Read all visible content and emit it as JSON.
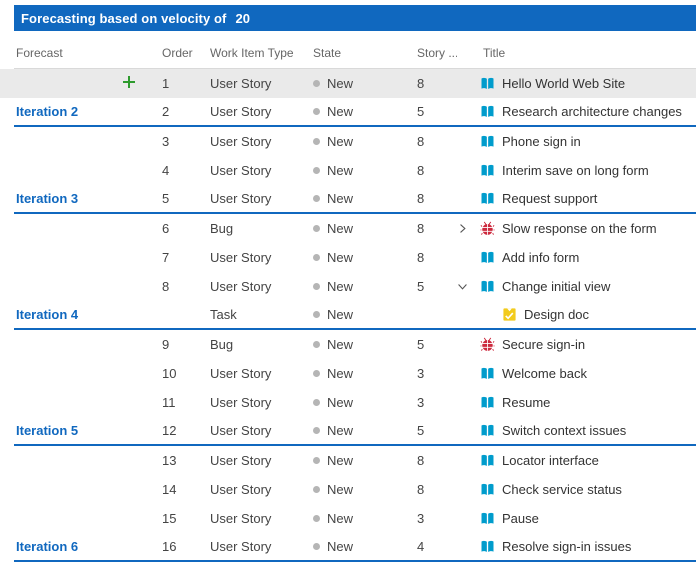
{
  "header": {
    "label": "Forecasting based on velocity of",
    "velocity": "20"
  },
  "columns": {
    "forecast": "Forecast",
    "order": "Order",
    "type": "Work Item Type",
    "state": "State",
    "points": "Story ...",
    "title": "Title"
  },
  "colors": {
    "accent": "#1068BF",
    "line": "#1068BF",
    "selected_row": "#eaeaea",
    "user_story_icon": "#009CCC",
    "bug_icon": "#CC293D",
    "task_icon": "#F2CB1D",
    "plus_icon": "#2E9B2E",
    "state_dot": "#b5b5b5"
  },
  "rows": [
    {
      "forecast": "",
      "plus": true,
      "order": "1",
      "type": "User Story",
      "state": "New",
      "points": "8",
      "icon": "user-story",
      "title": "Hello World Web Site",
      "selected": true
    },
    {
      "forecast": "Iteration 2",
      "order": "2",
      "type": "User Story",
      "state": "New",
      "points": "5",
      "icon": "user-story",
      "title": "Research architecture changes",
      "line": true
    },
    {
      "forecast": "",
      "order": "3",
      "type": "User Story",
      "state": "New",
      "points": "8",
      "icon": "user-story",
      "title": "Phone sign in"
    },
    {
      "forecast": "",
      "order": "4",
      "type": "User Story",
      "state": "New",
      "points": "8",
      "icon": "user-story",
      "title": "Interim save on long form"
    },
    {
      "forecast": "Iteration 3",
      "order": "5",
      "type": "User Story",
      "state": "New",
      "points": "8",
      "icon": "user-story",
      "title": "Request support",
      "line": true
    },
    {
      "forecast": "",
      "order": "6",
      "type": "Bug",
      "state": "New",
      "points": "8",
      "icon": "bug",
      "title": "Slow response on the form",
      "chevron": "right"
    },
    {
      "forecast": "",
      "order": "7",
      "type": "User Story",
      "state": "New",
      "points": "8",
      "icon": "user-story",
      "title": "Add info form"
    },
    {
      "forecast": "",
      "order": "8",
      "type": "User Story",
      "state": "New",
      "points": "5",
      "icon": "user-story",
      "title": "Change initial view",
      "chevron": "down"
    },
    {
      "forecast": "Iteration 4",
      "order": "",
      "type": "Task",
      "state": "New",
      "points": "",
      "icon": "task",
      "title": "Design doc",
      "child": true,
      "line": true
    },
    {
      "forecast": "",
      "order": "9",
      "type": "Bug",
      "state": "New",
      "points": "5",
      "icon": "bug",
      "title": "Secure sign-in"
    },
    {
      "forecast": "",
      "order": "10",
      "type": "User Story",
      "state": "New",
      "points": "3",
      "icon": "user-story",
      "title": "Welcome back"
    },
    {
      "forecast": "",
      "order": "11",
      "type": "User Story",
      "state": "New",
      "points": "3",
      "icon": "user-story",
      "title": "Resume"
    },
    {
      "forecast": "Iteration 5",
      "order": "12",
      "type": "User Story",
      "state": "New",
      "points": "5",
      "icon": "user-story",
      "title": "Switch context issues",
      "line": true
    },
    {
      "forecast": "",
      "order": "13",
      "type": "User Story",
      "state": "New",
      "points": "8",
      "icon": "user-story",
      "title": "Locator interface"
    },
    {
      "forecast": "",
      "order": "14",
      "type": "User Story",
      "state": "New",
      "points": "8",
      "icon": "user-story",
      "title": "Check service status"
    },
    {
      "forecast": "",
      "order": "15",
      "type": "User Story",
      "state": "New",
      "points": "3",
      "icon": "user-story",
      "title": "Pause"
    },
    {
      "forecast": "Iteration 6",
      "order": "16",
      "type": "User Story",
      "state": "New",
      "points": "4",
      "icon": "user-story",
      "title": "Resolve sign-in issues",
      "line": true
    }
  ]
}
